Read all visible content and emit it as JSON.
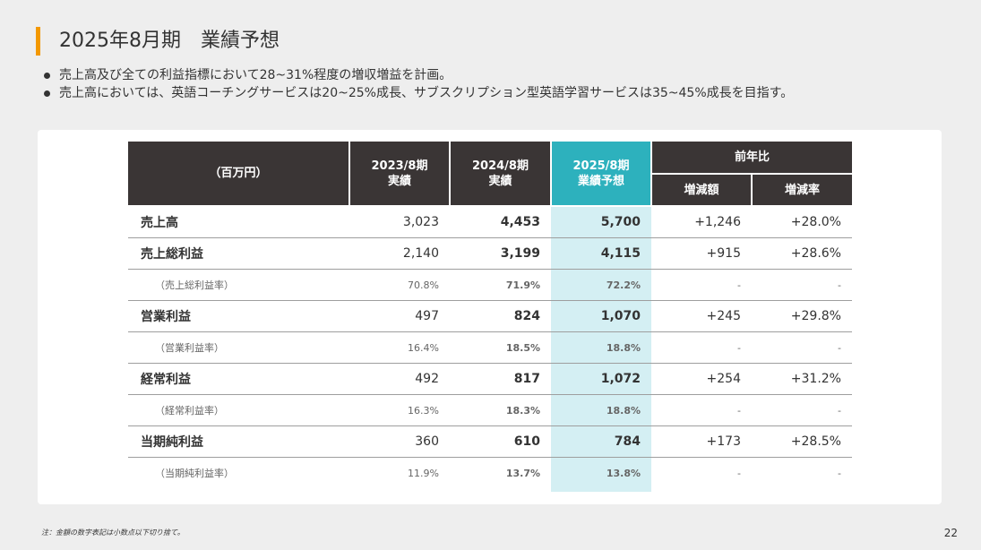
{
  "title": "2025年8月期　業績予想",
  "bullets": [
    "売上高及び全ての利益指標において28~31%程度の増収増益を計画。",
    "売上高においては、英語コーチングサービスは20~25%成長、サブスクリプション型英語学習サービスは35~45%成長を目指す。"
  ],
  "table": {
    "unit_label": "（百万円）",
    "col_2023": [
      "2023/8期",
      "実績"
    ],
    "col_2024": [
      "2024/8期",
      "実績"
    ],
    "col_2025": [
      "2025/8期",
      "業績予想"
    ],
    "yoy_label": "前年比",
    "yoy_amount_label": "増減額",
    "yoy_rate_label": "増減率",
    "rows": [
      {
        "label": "売上高",
        "v2023": "3,023",
        "v2024": "4,453",
        "v2025": "5,700",
        "diff": "+1,246",
        "rate": "+28.0%"
      },
      {
        "label": "売上総利益",
        "v2023": "2,140",
        "v2024": "3,199",
        "v2025": "4,115",
        "diff": "+915",
        "rate": "+28.6%"
      },
      {
        "label": "（売上総利益率）",
        "v2023": "70.8%",
        "v2024": "71.9%",
        "v2025": "72.2%",
        "diff": "-",
        "rate": "-"
      },
      {
        "label": "営業利益",
        "v2023": "497",
        "v2024": "824",
        "v2025": "1,070",
        "diff": "+245",
        "rate": "+29.8%"
      },
      {
        "label": "（営業利益率）",
        "v2023": "16.4%",
        "v2024": "18.5%",
        "v2025": "18.8%",
        "diff": "-",
        "rate": "-"
      },
      {
        "label": "経常利益",
        "v2023": "492",
        "v2024": "817",
        "v2025": "1,072",
        "diff": "+254",
        "rate": "+31.2%"
      },
      {
        "label": "（経常利益率）",
        "v2023": "16.3%",
        "v2024": "18.3%",
        "v2025": "18.8%",
        "diff": "-",
        "rate": "-"
      },
      {
        "label": "当期純利益",
        "v2023": "360",
        "v2024": "610",
        "v2025": "784",
        "diff": "+173",
        "rate": "+28.5%"
      },
      {
        "label": "（当期純利益率）",
        "v2023": "11.9%",
        "v2024": "13.7%",
        "v2025": "13.8%",
        "diff": "-",
        "rate": "-"
      }
    ]
  },
  "footnote": "注：金額の数字表記は小数点以下切り捨て。",
  "page_number": "22",
  "colors": {
    "accent": "#f39800",
    "highlight": "#2db1bd",
    "highlight_light": "#d4eff3",
    "header_dark": "#3a3535"
  }
}
